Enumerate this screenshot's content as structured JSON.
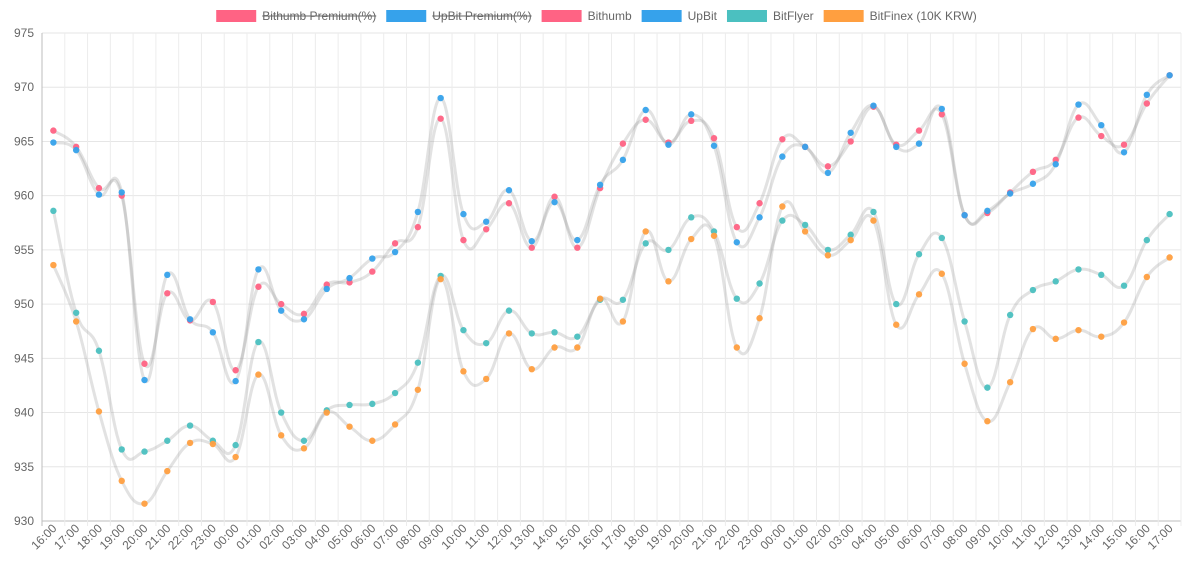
{
  "chart_data": {
    "type": "line",
    "ylim": [
      930,
      975
    ],
    "y_ticks": [
      "930",
      "935",
      "940",
      "945",
      "950",
      "955",
      "960",
      "965",
      "970",
      "975"
    ],
    "categories": [
      "16:00",
      "17:00",
      "18:00",
      "19:00",
      "20:00",
      "21:00",
      "22:00",
      "23:00",
      "00:00",
      "01:00",
      "02:00",
      "03:00",
      "04:00",
      "05:00",
      "06:00",
      "07:00",
      "08:00",
      "09:00",
      "10:00",
      "11:00",
      "12:00",
      "13:00",
      "14:00",
      "15:00",
      "16:00",
      "17:00",
      "18:00",
      "19:00",
      "20:00",
      "21:00",
      "22:00",
      "23:00",
      "00:00",
      "01:00",
      "02:00",
      "03:00",
      "04:00",
      "05:00",
      "06:00",
      "07:00",
      "08:00",
      "09:00",
      "10:00",
      "11:00",
      "12:00",
      "13:00",
      "14:00",
      "15:00",
      "16:00",
      "17:00"
    ],
    "grid": true,
    "legend_position": "top",
    "legend": [
      {
        "name": "Bithumb Premium(%)",
        "color": "#ff6384",
        "hidden": true
      },
      {
        "name": "UpBit Premium(%)",
        "color": "#36a2eb",
        "hidden": true
      },
      {
        "name": "Bithumb",
        "color": "#ff6384",
        "hidden": false
      },
      {
        "name": "UpBit",
        "color": "#36a2eb",
        "hidden": false
      },
      {
        "name": "BitFlyer",
        "color": "#4bc0c0",
        "hidden": false
      },
      {
        "name": "BitFinex (10K KRW)",
        "color": "#ff9f40",
        "hidden": false
      }
    ],
    "series": [
      {
        "name": "Bithumb",
        "color": "#ff6384",
        "values": [
          966.0,
          964.5,
          960.7,
          960.0,
          944.5,
          951.0,
          948.5,
          950.2,
          943.9,
          951.6,
          950.0,
          949.1,
          951.8,
          952.0,
          953.0,
          955.6,
          957.1,
          967.1,
          955.9,
          956.9,
          959.3,
          955.2,
          959.9,
          955.2,
          960.7,
          964.8,
          967.0,
          964.9,
          966.9,
          965.3,
          957.1,
          959.3,
          965.2,
          964.5,
          962.7,
          965.0,
          968.2,
          964.7,
          966.0,
          967.5,
          958.2,
          958.4,
          960.3,
          962.2,
          963.3,
          967.2,
          965.5,
          964.7,
          968.5,
          971.1
        ]
      },
      {
        "name": "UpBit",
        "color": "#36a2eb",
        "values": [
          964.9,
          964.2,
          960.1,
          960.3,
          943.0,
          952.7,
          948.6,
          947.4,
          942.9,
          953.2,
          949.4,
          948.6,
          951.4,
          952.4,
          954.2,
          954.8,
          958.5,
          969.0,
          958.3,
          957.6,
          960.5,
          955.8,
          959.4,
          955.9,
          961.0,
          963.3,
          967.9,
          964.7,
          967.5,
          964.6,
          955.7,
          958.0,
          963.6,
          964.5,
          962.1,
          965.8,
          968.3,
          964.5,
          964.8,
          968.0,
          958.2,
          958.6,
          960.2,
          961.1,
          962.9,
          968.4,
          966.5,
          964.0,
          969.3,
          971.1
        ]
      },
      {
        "name": "BitFlyer",
        "color": "#4bc0c0",
        "values": [
          958.6,
          949.2,
          945.7,
          936.6,
          936.4,
          937.4,
          938.8,
          937.4,
          937.0,
          946.5,
          940.0,
          937.4,
          940.2,
          940.7,
          940.8,
          941.8,
          944.6,
          952.6,
          947.6,
          946.4,
          949.4,
          947.3,
          947.4,
          947.0,
          950.4,
          950.4,
          955.6,
          955.0,
          958.0,
          956.7,
          950.5,
          951.9,
          957.7,
          957.3,
          955.0,
          956.4,
          958.5,
          950.0,
          954.6,
          956.1,
          948.4,
          942.3,
          949.0,
          951.3,
          952.1,
          953.2,
          952.7,
          951.7,
          955.9,
          958.3
        ]
      },
      {
        "name": "BitFinex (10K KRW)",
        "color": "#ff9f40",
        "values": [
          953.6,
          948.4,
          940.1,
          933.7,
          931.6,
          934.6,
          937.2,
          937.1,
          935.9,
          943.5,
          937.9,
          936.7,
          940.0,
          938.7,
          937.4,
          938.9,
          942.1,
          952.3,
          943.8,
          943.1,
          947.3,
          944.0,
          946.0,
          946.0,
          950.5,
          948.4,
          956.7,
          952.1,
          956.0,
          956.3,
          946.0,
          948.7,
          959.0,
          956.7,
          954.5,
          955.9,
          957.7,
          948.1,
          950.9,
          952.8,
          944.5,
          939.2,
          942.8,
          947.7,
          946.8,
          947.6,
          947.0,
          948.3,
          952.5,
          954.3
        ]
      }
    ]
  }
}
